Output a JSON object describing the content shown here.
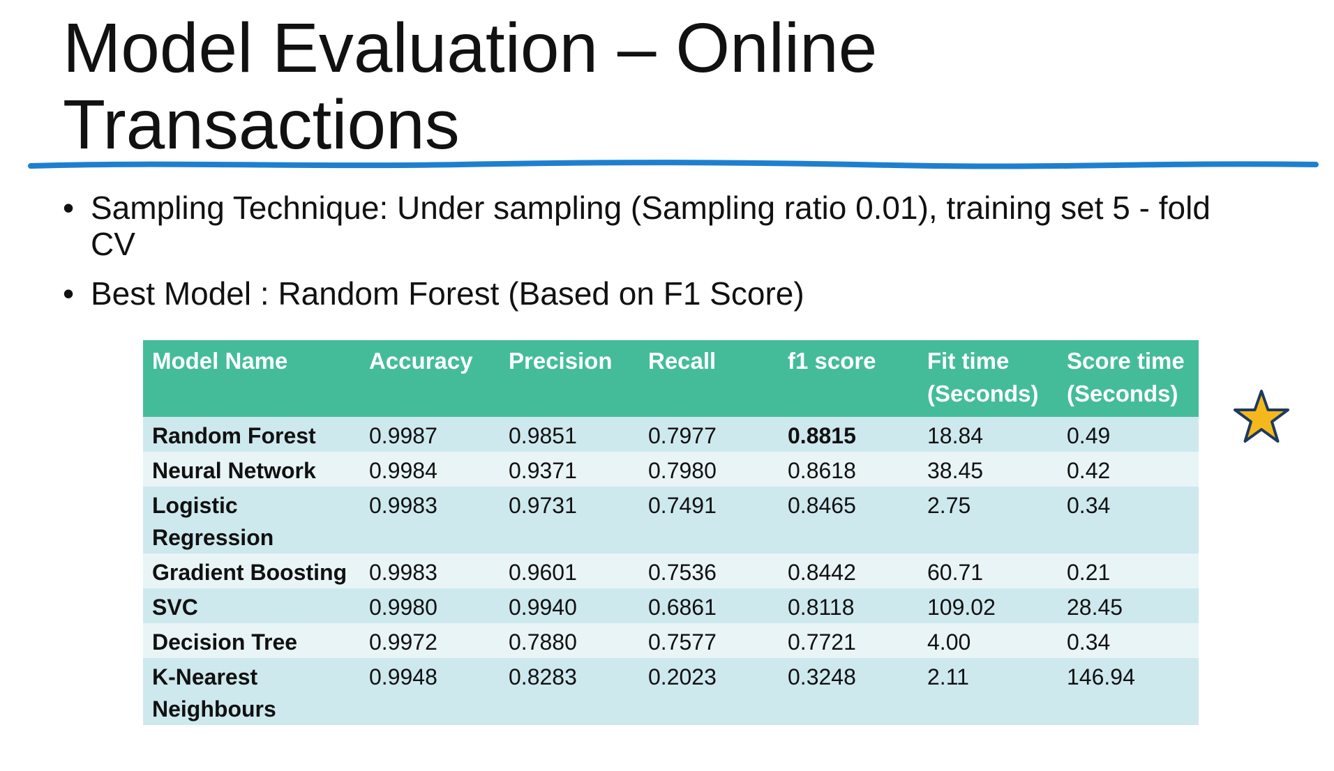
{
  "slide": {
    "title": "Model Evaluation – Online Transactions",
    "bullets": [
      "Sampling Technique: Under sampling (Sampling ratio 0.01), training set 5 - fold CV",
      "Best Model : Random Forest (Based on F1 Score)"
    ],
    "bullet_glyph": "•",
    "underline_color": "#1f7fcf"
  },
  "table": {
    "header_color": "#44bc9a",
    "row_colors": [
      "#cde9ee",
      "#e8f4f6"
    ],
    "columns": [
      "Model Name",
      "Accuracy",
      "Precision",
      "Recall",
      "f1 score",
      "Fit time (Seconds)",
      "Score time (Seconds)"
    ],
    "rows": [
      [
        "Random Forest",
        "0.9987",
        "0.9851",
        "0.7977",
        "0.8815",
        "18.84",
        "0.49"
      ],
      [
        "Neural Network",
        "0.9984",
        "0.9371",
        "0.7980",
        "0.8618",
        "38.45",
        "0.42"
      ],
      [
        "Logistic Regression",
        "0.9983",
        "0.9731",
        "0.7491",
        "0.8465",
        "2.75",
        "0.34"
      ],
      [
        "Gradient Boosting",
        "0.9983",
        "0.9601",
        "0.7536",
        "0.8442",
        "60.71",
        "0.21"
      ],
      [
        "SVC",
        "0.9980",
        "0.9940",
        "0.6861",
        "0.8118",
        "109.02",
        "28.45"
      ],
      [
        "Decision Tree",
        "0.9972",
        "0.7880",
        "0.7577",
        "0.7721",
        "4.00",
        "0.34"
      ],
      [
        "K-Nearest Neighbours",
        "0.9948",
        "0.8283",
        "0.2023",
        "0.3248",
        "2.11",
        "146.94"
      ]
    ],
    "highlight": {
      "row": 0,
      "column": 4
    }
  },
  "star": {
    "icon": "star-icon",
    "fill": "#f5b81c",
    "stroke": "#1e3a5f",
    "marks_row": "Random Forest"
  }
}
